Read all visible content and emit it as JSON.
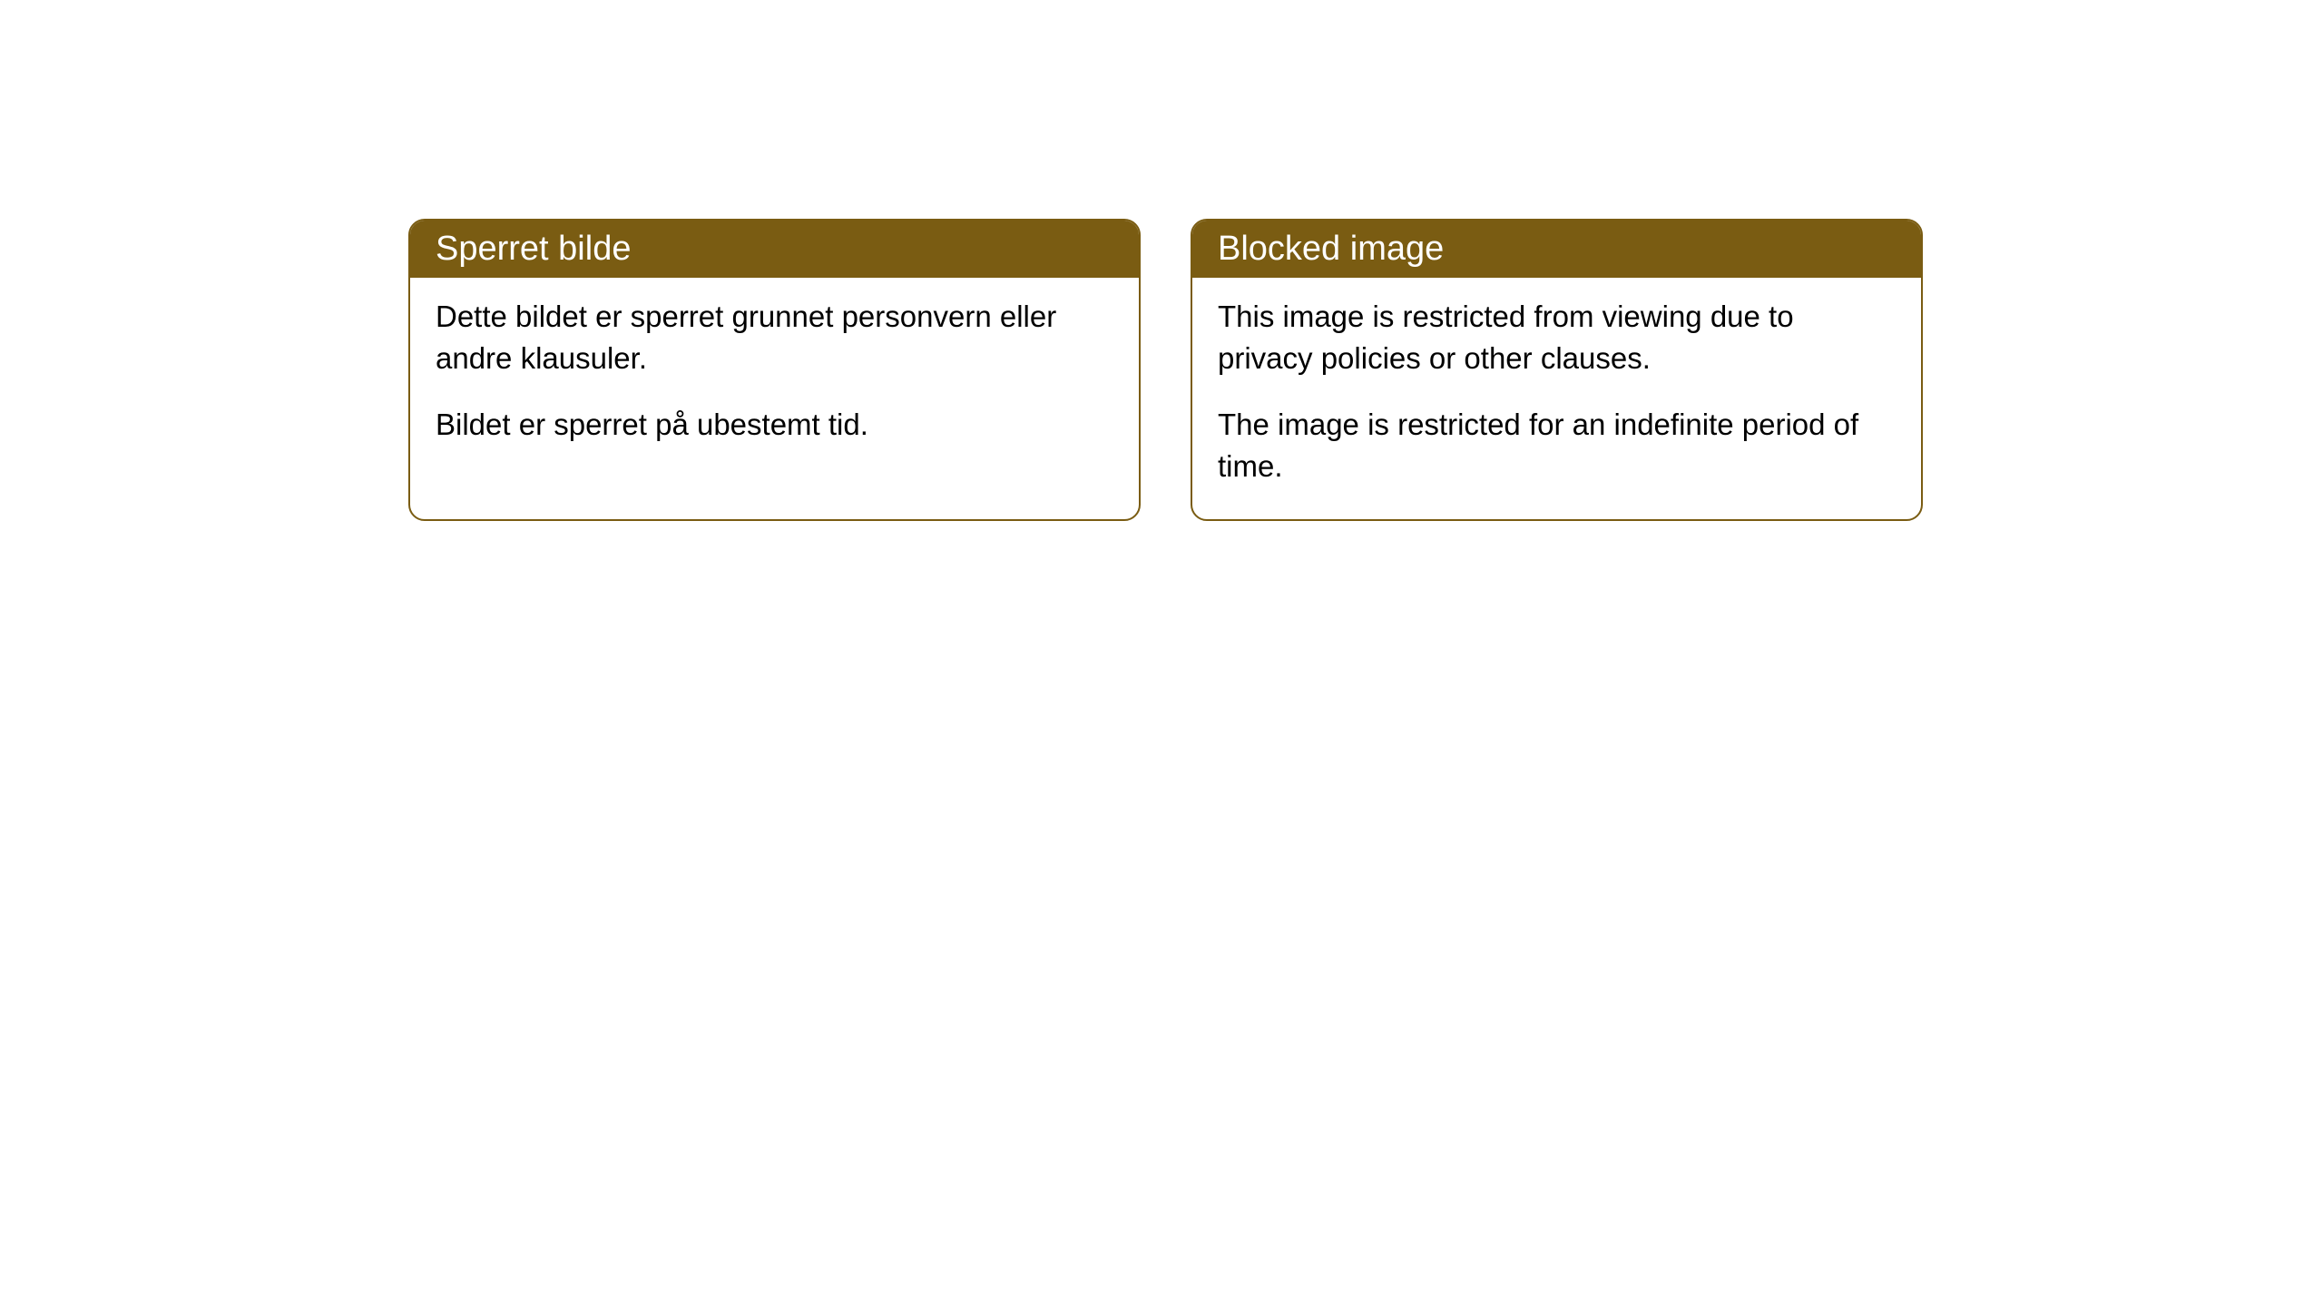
{
  "cards": [
    {
      "title": "Sperret bilde",
      "paragraph1": "Dette bildet er sperret grunnet personvern eller andre klausuler.",
      "paragraph2": "Bildet er sperret på ubestemt tid."
    },
    {
      "title": "Blocked image",
      "paragraph1": "This image is restricted from viewing due to privacy policies or other clauses.",
      "paragraph2": "The image is restricted for an indefinite period of time."
    }
  ],
  "style": {
    "header_bg": "#7a5c12",
    "header_text_color": "#ffffff",
    "border_color": "#7a5c12",
    "body_bg": "#ffffff",
    "body_text_color": "#000000",
    "border_radius": 18,
    "title_fontsize": 38,
    "body_fontsize": 33
  }
}
